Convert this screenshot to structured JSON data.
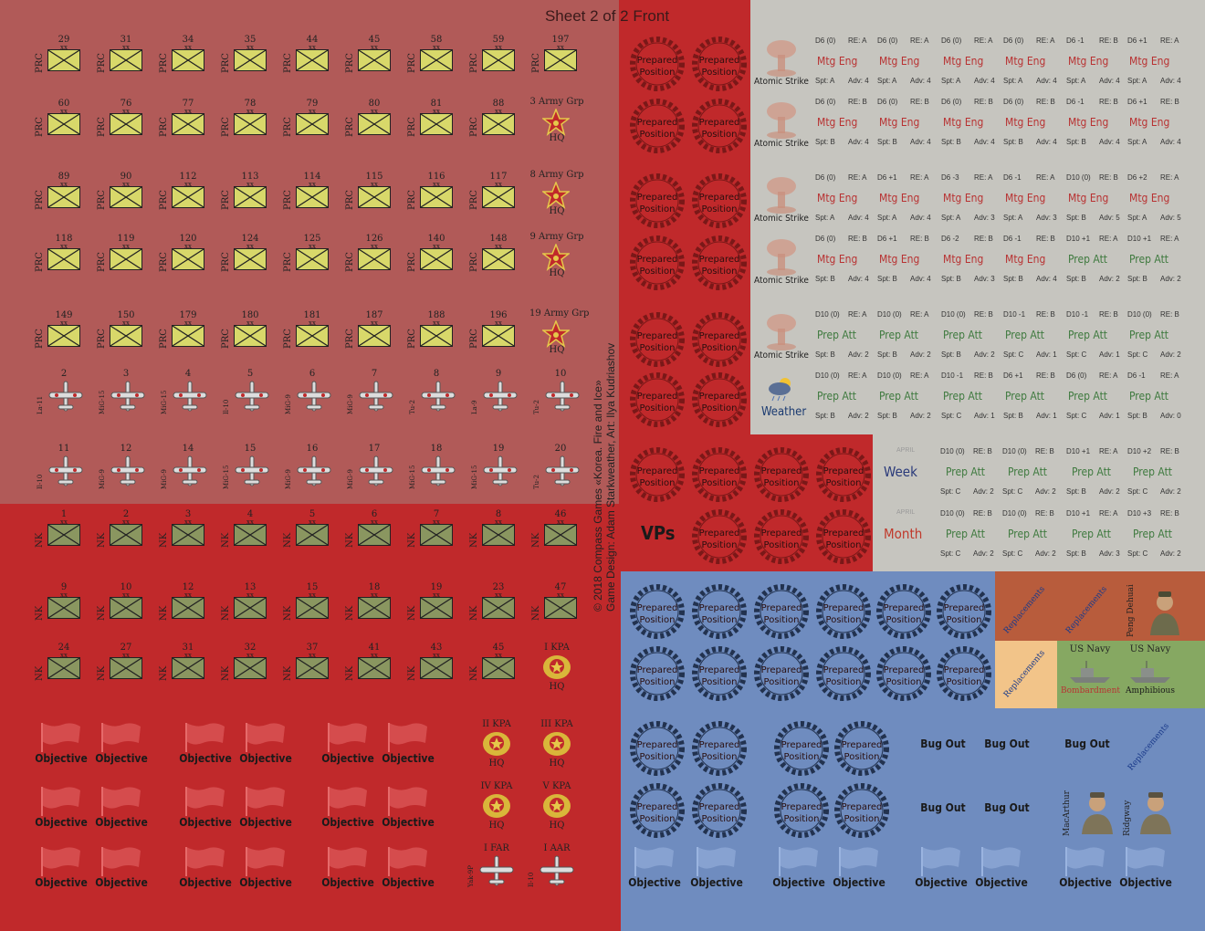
{
  "title": "Sheet 2 of 2 Front",
  "credits": {
    "line1": "© 2018 Compass Games «Korea. Fire and Ice»",
    "line2": "Game Design: Adam Starkweather, Art: Ilya Kudriashov"
  },
  "colors": {
    "prc_bg": "#b15a58",
    "red_bg": "#c0292b",
    "grey_bg": "#c6c5bf",
    "blue_bg": "#6f8cbf",
    "unit_yellow": "#d8d86a",
    "unit_green": "#8a9660",
    "star_red": "#c0292b",
    "star_gold": "#e5c84a",
    "mtg": "#b83232",
    "prep": "#3f7a3f"
  },
  "prc_rows": [
    {
      "nums": [
        "29",
        "31",
        "34",
        "35",
        "44",
        "45",
        "58",
        "59",
        "197"
      ]
    },
    {
      "nums": [
        "60",
        "76",
        "77",
        "78",
        "79",
        "80",
        "81",
        "88"
      ],
      "hq": "3 Army Grp"
    },
    {
      "nums": [
        "89",
        "90",
        "112",
        "113",
        "114",
        "115",
        "116",
        "117"
      ],
      "hq": "8 Army Grp"
    },
    {
      "nums": [
        "118",
        "119",
        "120",
        "124",
        "125",
        "126",
        "140",
        "148"
      ],
      "hq": "9 Army Grp"
    },
    {
      "nums": [
        "149",
        "150",
        "179",
        "180",
        "181",
        "187",
        "188",
        "196"
      ],
      "hq": "19 Army Grp"
    }
  ],
  "prc_label": "PRC",
  "xx": "xx",
  "hq_label": "HQ",
  "planes_row1": {
    "nums": [
      "2",
      "3",
      "4",
      "5",
      "6",
      "7",
      "8",
      "9",
      "10"
    ],
    "types": [
      "La-11",
      "MiG-15",
      "MiG-15",
      "Il-10",
      "MiG-9",
      "MiG-9",
      "Tu-2",
      "La-9",
      "Tu-2"
    ]
  },
  "planes_row2": {
    "nums": [
      "11",
      "12",
      "14",
      "15",
      "16",
      "17",
      "18",
      "19",
      "20"
    ],
    "types": [
      "Il-10",
      "MiG-9",
      "MiG-9",
      "MiG-15",
      "MiG-9",
      "MiG-9",
      "MiG-15",
      "MiG-15",
      "Tu-2"
    ]
  },
  "nk_rows": [
    {
      "nums": [
        "1",
        "2",
        "3",
        "4",
        "5",
        "6",
        "7",
        "8",
        "46"
      ]
    },
    {
      "nums": [
        "9",
        "10",
        "12",
        "13",
        "15",
        "18",
        "19",
        "23",
        "47"
      ]
    },
    {
      "nums": [
        "24",
        "27",
        "31",
        "32",
        "37",
        "41",
        "43",
        "45"
      ],
      "hq": "I KPA"
    }
  ],
  "nk_label": "NK",
  "kpa_hq": [
    "II KPA",
    "III KPA",
    "IV KPA",
    "V KPA"
  ],
  "air_hq": [
    {
      "name": "I FAR",
      "type": "Yak-9P"
    },
    {
      "name": "I AAR",
      "type": "Il-10"
    }
  ],
  "objective": "Objective",
  "prepared": "Prepared Position",
  "prepared_line1": "Prepared",
  "prepared_line2": "Position",
  "vps": "VPs",
  "atomic": "Atomic Strike",
  "weather": "Weather",
  "week": "Week",
  "month": "Month",
  "april": "APRIL",
  "mtg": "Mtg Eng",
  "prep": "Prep Att",
  "grey_rows": [
    {
      "kind": [
        "mtg",
        "mtg",
        "mtg",
        "mtg",
        "mtg",
        "mtg"
      ],
      "top": [
        [
          "D6 (0)",
          "RE: A"
        ],
        [
          "D6 (0)",
          "RE: A"
        ],
        [
          "D6 (0)",
          "RE: A"
        ],
        [
          "D6 (0)",
          "RE: A"
        ],
        [
          "D6 -1",
          "RE: B"
        ],
        [
          "D6 +1",
          "RE: A"
        ]
      ],
      "bot": [
        [
          "Spt: A",
          "Adv: 4"
        ],
        [
          "Spt: A",
          "Adv: 4"
        ],
        [
          "Spt: A",
          "Adv: 4"
        ],
        [
          "Spt: A",
          "Adv: 4"
        ],
        [
          "Spt: A",
          "Adv: 4"
        ],
        [
          "Spt: A",
          "Adv: 4"
        ]
      ]
    },
    {
      "kind": [
        "mtg",
        "mtg",
        "mtg",
        "mtg",
        "mtg",
        "mtg"
      ],
      "top": [
        [
          "D6 (0)",
          "RE: B"
        ],
        [
          "D6 (0)",
          "RE: B"
        ],
        [
          "D6 (0)",
          "RE: B"
        ],
        [
          "D6 (0)",
          "RE: B"
        ],
        [
          "D6 -1",
          "RE: B"
        ],
        [
          "D6 +1",
          "RE: B"
        ]
      ],
      "bot": [
        [
          "Spt: B",
          "Adv: 4"
        ],
        [
          "Spt: B",
          "Adv: 4"
        ],
        [
          "Spt: B",
          "Adv: 4"
        ],
        [
          "Spt: B",
          "Adv: 4"
        ],
        [
          "Spt: B",
          "Adv: 4"
        ],
        [
          "Spt: A",
          "Adv: 4"
        ]
      ]
    },
    {
      "kind": [
        "mtg",
        "mtg",
        "mtg",
        "mtg",
        "mtg",
        "mtg"
      ],
      "top": [
        [
          "D6 (0)",
          "RE: A"
        ],
        [
          "D6 +1",
          "RE: A"
        ],
        [
          "D6 -3",
          "RE: A"
        ],
        [
          "D6 -1",
          "RE: A"
        ],
        [
          "D10 (0)",
          "RE: B"
        ],
        [
          "D6 +2",
          "RE: A"
        ]
      ],
      "bot": [
        [
          "Spt: A",
          "Adv: 4"
        ],
        [
          "Spt: A",
          "Adv: 4"
        ],
        [
          "Spt: A",
          "Adv: 3"
        ],
        [
          "Spt: A",
          "Adv: 3"
        ],
        [
          "Spt: B",
          "Adv: 5"
        ],
        [
          "Spt: A",
          "Adv: 5"
        ]
      ]
    },
    {
      "kind": [
        "mtg",
        "mtg",
        "mtg",
        "mtg",
        "prep",
        "prep"
      ],
      "top": [
        [
          "D6 (0)",
          "RE: B"
        ],
        [
          "D6 +1",
          "RE: B"
        ],
        [
          "D6 -2",
          "RE: B"
        ],
        [
          "D6 -1",
          "RE: B"
        ],
        [
          "D10 +1",
          "RE: A"
        ],
        [
          "D10 +1",
          "RE: A"
        ]
      ],
      "bot": [
        [
          "Spt: B",
          "Adv: 4"
        ],
        [
          "Spt: B",
          "Adv: 4"
        ],
        [
          "Spt: B",
          "Adv: 3"
        ],
        [
          "Spt: B",
          "Adv: 4"
        ],
        [
          "Spt: B",
          "Adv: 2"
        ],
        [
          "Spt: B",
          "Adv: 2"
        ]
      ]
    },
    {
      "kind": [
        "prep",
        "prep",
        "prep",
        "prep",
        "prep",
        "prep"
      ],
      "top": [
        [
          "D10 (0)",
          "RE: A"
        ],
        [
          "D10 (0)",
          "RE: A"
        ],
        [
          "D10 (0)",
          "RE: B"
        ],
        [
          "D10 -1",
          "RE: B"
        ],
        [
          "D10 -1",
          "RE: B"
        ],
        [
          "D10 (0)",
          "RE: B"
        ]
      ],
      "bot": [
        [
          "Spt: B",
          "Adv: 2"
        ],
        [
          "Spt: B",
          "Adv: 2"
        ],
        [
          "Spt: B",
          "Adv: 2"
        ],
        [
          "Spt: C",
          "Adv: 1"
        ],
        [
          "Spt: C",
          "Adv: 1"
        ],
        [
          "Spt: C",
          "Adv: 2"
        ]
      ]
    },
    {
      "kind": [
        "prep",
        "prep",
        "prep",
        "prep",
        "prep",
        "prep"
      ],
      "top": [
        [
          "D10 (0)",
          "RE: A"
        ],
        [
          "D10 (0)",
          "RE: A"
        ],
        [
          "D10 -1",
          "RE: B"
        ],
        [
          "D6 +1",
          "RE: B"
        ],
        [
          "D6 (0)",
          "RE: A"
        ],
        [
          "D6 -1",
          "RE: A"
        ]
      ],
      "bot": [
        [
          "Spt: B",
          "Adv: 2"
        ],
        [
          "Spt: B",
          "Adv: 2"
        ],
        [
          "Spt: C",
          "Adv: 1"
        ],
        [
          "Spt: B",
          "Adv: 1"
        ],
        [
          "Spt: C",
          "Adv: 1"
        ],
        [
          "Spt: B",
          "Adv: 0"
        ]
      ]
    }
  ],
  "grey_rows2": [
    {
      "top": [
        [
          "D10 (0)",
          "RE: B"
        ],
        [
          "D10 (0)",
          "RE: B"
        ],
        [
          "D10 +1",
          "RE: A"
        ],
        [
          "D10 +2",
          "RE: B"
        ]
      ],
      "bot": [
        [
          "Spt: C",
          "Adv: 2"
        ],
        [
          "Spt: C",
          "Adv: 2"
        ],
        [
          "Spt: B",
          "Adv: 2"
        ],
        [
          "Spt: C",
          "Adv: 2"
        ]
      ]
    },
    {
      "top": [
        [
          "D10 (0)",
          "RE: B"
        ],
        [
          "D10 (0)",
          "RE: B"
        ],
        [
          "D10 +1",
          "RE: A"
        ],
        [
          "D10 +3",
          "RE: B"
        ]
      ],
      "bot": [
        [
          "Spt: C",
          "Adv: 2"
        ],
        [
          "Spt: C",
          "Adv: 2"
        ],
        [
          "Spt: B",
          "Adv: 3"
        ],
        [
          "Spt: C",
          "Adv: 2"
        ]
      ]
    }
  ],
  "replacements": "Replacements",
  "peng": "Peng Dehuai",
  "us_navy": "US Navy",
  "bombardment": "Bombardment",
  "amphibious": "Amphibious",
  "bug_out": "Bug Out",
  "macarthur": "MacArthur",
  "ridgway": "Ridgway"
}
